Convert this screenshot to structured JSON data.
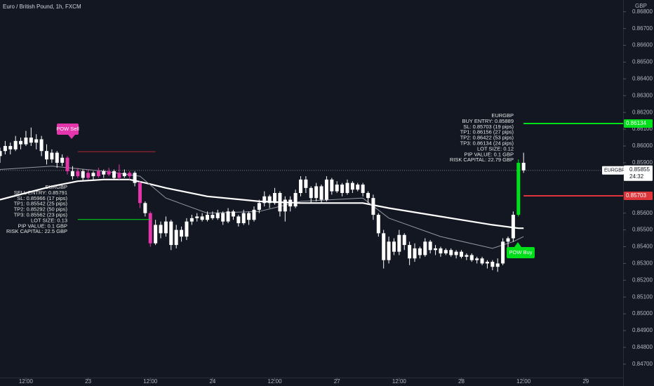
{
  "chart_data": {
    "type": "candlestick",
    "title": "Euro / British Pound, 1h, FXCM",
    "currency": "GBP",
    "xlim": [
      0,
      120.2
    ],
    "ylim": [
      0.8462,
      0.8687
    ],
    "xticks": [
      {
        "value": 5,
        "label": "12:00"
      },
      {
        "value": 17,
        "label": "23"
      },
      {
        "value": 29,
        "label": "12:00"
      },
      {
        "value": 41,
        "label": "24"
      },
      {
        "value": 53,
        "label": "12:00"
      },
      {
        "value": 65,
        "label": "27"
      },
      {
        "value": 77,
        "label": "12:00"
      },
      {
        "value": 89,
        "label": "28"
      },
      {
        "value": 101,
        "label": "12:00"
      },
      {
        "value": 113,
        "label": "29"
      }
    ],
    "yticks": [
      {
        "value": 0.868,
        "label": "0.86800"
      },
      {
        "value": 0.867,
        "label": "0.86700"
      },
      {
        "value": 0.866,
        "label": "0.86600"
      },
      {
        "value": 0.865,
        "label": "0.86500"
      },
      {
        "value": 0.864,
        "label": "0.86400"
      },
      {
        "value": 0.863,
        "label": "0.86300"
      },
      {
        "value": 0.862,
        "label": "0.86200"
      },
      {
        "value": 0.861,
        "label": "0.86100"
      },
      {
        "value": 0.86,
        "label": "0.86000"
      },
      {
        "value": 0.859,
        "label": "0.85900"
      },
      {
        "value": 0.856,
        "label": "0.85600"
      },
      {
        "value": 0.855,
        "label": "0.85500"
      },
      {
        "value": 0.854,
        "label": "0.85400"
      },
      {
        "value": 0.853,
        "label": "0.85300"
      },
      {
        "value": 0.852,
        "label": "0.85200"
      },
      {
        "value": 0.851,
        "label": "0.85100"
      },
      {
        "value": 0.85,
        "label": "0.85000"
      },
      {
        "value": 0.849,
        "label": "0.84900"
      },
      {
        "value": 0.848,
        "label": "0.84800"
      },
      {
        "value": 0.847,
        "label": "0.84700"
      }
    ],
    "candle_color": "#ffffff",
    "sell_color": "#e535ab",
    "buy_color": "#00e01a",
    "sell_candles": [
      13,
      15,
      17,
      19,
      21,
      23,
      25,
      27,
      29
    ],
    "buy_candles": [
      100
    ],
    "ohlc": [
      [
        0.8594,
        0.8599,
        0.859,
        0.8597
      ],
      [
        0.8597,
        0.8603,
        0.8595,
        0.86
      ],
      [
        0.86,
        0.8602,
        0.8595,
        0.8598
      ],
      [
        0.8598,
        0.8606,
        0.8597,
        0.8603
      ],
      [
        0.8603,
        0.8605,
        0.8598,
        0.8601
      ],
      [
        0.8601,
        0.8609,
        0.86,
        0.8605
      ],
      [
        0.8605,
        0.8611,
        0.86,
        0.8602
      ],
      [
        0.8602,
        0.8607,
        0.8598,
        0.8604
      ],
      [
        0.8604,
        0.8606,
        0.8594,
        0.8597
      ],
      [
        0.8597,
        0.8601,
        0.8589,
        0.8592
      ],
      [
        0.8592,
        0.8598,
        0.859,
        0.8596
      ],
      [
        0.8596,
        0.8597,
        0.8587,
        0.859
      ],
      [
        0.859,
        0.8595,
        0.8588,
        0.8593
      ],
      [
        0.8593,
        0.8594,
        0.8583,
        0.8585
      ],
      [
        0.8585,
        0.8588,
        0.858,
        0.8582
      ],
      [
        0.8582,
        0.8587,
        0.8581,
        0.8585
      ],
      [
        0.8585,
        0.8586,
        0.8579,
        0.8581
      ],
      [
        0.8581,
        0.8586,
        0.858,
        0.8584
      ],
      [
        0.8584,
        0.8585,
        0.858,
        0.8582
      ],
      [
        0.8582,
        0.8587,
        0.8581,
        0.8585
      ],
      [
        0.8585,
        0.8586,
        0.8581,
        0.8583
      ],
      [
        0.8583,
        0.8587,
        0.8582,
        0.8585
      ],
      [
        0.8585,
        0.8586,
        0.858,
        0.8581
      ],
      [
        0.8581,
        0.8589,
        0.858,
        0.8584
      ],
      [
        0.8584,
        0.8586,
        0.8581,
        0.8582
      ],
      [
        0.8582,
        0.8585,
        0.858,
        0.8584
      ],
      [
        0.8584,
        0.8585,
        0.8576,
        0.8578
      ],
      [
        0.8578,
        0.8579,
        0.8563,
        0.8566
      ],
      [
        0.8566,
        0.8567,
        0.8558,
        0.856
      ],
      [
        0.856,
        0.8561,
        0.854,
        0.8542
      ],
      [
        0.8542,
        0.8556,
        0.8541,
        0.8553
      ],
      [
        0.8553,
        0.8555,
        0.8545,
        0.8548
      ],
      [
        0.8548,
        0.8558,
        0.8546,
        0.8555
      ],
      [
        0.8555,
        0.8556,
        0.8538,
        0.8541
      ],
      [
        0.8541,
        0.8553,
        0.8539,
        0.855
      ],
      [
        0.855,
        0.8552,
        0.8543,
        0.8546
      ],
      [
        0.8546,
        0.8557,
        0.8544,
        0.8555
      ],
      [
        0.8555,
        0.8559,
        0.8553,
        0.8557
      ],
      [
        0.8557,
        0.856,
        0.8555,
        0.8558
      ],
      [
        0.8558,
        0.856,
        0.8555,
        0.8556
      ],
      [
        0.8556,
        0.8561,
        0.8555,
        0.8559
      ],
      [
        0.8559,
        0.8561,
        0.8556,
        0.8557
      ],
      [
        0.8557,
        0.8562,
        0.8556,
        0.856
      ],
      [
        0.856,
        0.8561,
        0.8553,
        0.8555
      ],
      [
        0.8555,
        0.8563,
        0.8554,
        0.8561
      ],
      [
        0.8561,
        0.8562,
        0.8556,
        0.8558
      ],
      [
        0.8558,
        0.8559,
        0.8552,
        0.8554
      ],
      [
        0.8554,
        0.8562,
        0.8553,
        0.856
      ],
      [
        0.856,
        0.8561,
        0.8553,
        0.8556
      ],
      [
        0.8556,
        0.8564,
        0.8555,
        0.8562
      ],
      [
        0.8562,
        0.8568,
        0.856,
        0.8566
      ],
      [
        0.8566,
        0.8573,
        0.8564,
        0.857
      ],
      [
        0.857,
        0.8571,
        0.8563,
        0.8566
      ],
      [
        0.8566,
        0.8575,
        0.8565,
        0.8572
      ],
      [
        0.8572,
        0.8573,
        0.8558,
        0.8561
      ],
      [
        0.8561,
        0.857,
        0.8555,
        0.8568
      ],
      [
        0.8568,
        0.857,
        0.8561,
        0.8564
      ],
      [
        0.8564,
        0.8574,
        0.8563,
        0.8572
      ],
      [
        0.8572,
        0.8582,
        0.857,
        0.858
      ],
      [
        0.858,
        0.8582,
        0.8572,
        0.8575
      ],
      [
        0.8575,
        0.8576,
        0.8566,
        0.8569
      ],
      [
        0.8569,
        0.8578,
        0.8567,
        0.8576
      ],
      [
        0.8576,
        0.8577,
        0.8566,
        0.8568
      ],
      [
        0.8568,
        0.8582,
        0.8567,
        0.858
      ],
      [
        0.858,
        0.8581,
        0.8571,
        0.8573
      ],
      [
        0.8573,
        0.8579,
        0.8572,
        0.8577
      ],
      [
        0.8577,
        0.8578,
        0.857,
        0.8572
      ],
      [
        0.8572,
        0.858,
        0.8571,
        0.8578
      ],
      [
        0.8578,
        0.8579,
        0.8572,
        0.8574
      ],
      [
        0.8574,
        0.8578,
        0.8573,
        0.8577
      ],
      [
        0.8577,
        0.8578,
        0.857,
        0.8572
      ],
      [
        0.8572,
        0.8573,
        0.8566,
        0.8569
      ],
      [
        0.8569,
        0.8571,
        0.8556,
        0.8559
      ],
      [
        0.8559,
        0.856,
        0.8546,
        0.8548
      ],
      [
        0.8548,
        0.855,
        0.8527,
        0.8532
      ],
      [
        0.8532,
        0.8546,
        0.853,
        0.8543
      ],
      [
        0.8543,
        0.8545,
        0.8535,
        0.8537
      ],
      [
        0.8537,
        0.855,
        0.8535,
        0.8547
      ],
      [
        0.8547,
        0.8548,
        0.8538,
        0.8541
      ],
      [
        0.8541,
        0.8543,
        0.8529,
        0.8533
      ],
      [
        0.8533,
        0.8542,
        0.8531,
        0.8539
      ],
      [
        0.8539,
        0.854,
        0.8533,
        0.8535
      ],
      [
        0.8535,
        0.8545,
        0.8534,
        0.8543
      ],
      [
        0.8543,
        0.8544,
        0.8536,
        0.8538
      ],
      [
        0.8538,
        0.8541,
        0.8535,
        0.8539
      ],
      [
        0.8539,
        0.854,
        0.8534,
        0.8536
      ],
      [
        0.8536,
        0.8539,
        0.8535,
        0.8538
      ],
      [
        0.8538,
        0.8539,
        0.8534,
        0.8535
      ],
      [
        0.8535,
        0.8538,
        0.8533,
        0.8537
      ],
      [
        0.8537,
        0.8538,
        0.8533,
        0.8534
      ],
      [
        0.8534,
        0.8536,
        0.8532,
        0.8535
      ],
      [
        0.8535,
        0.8536,
        0.8531,
        0.8532
      ],
      [
        0.8532,
        0.8534,
        0.853,
        0.8533
      ],
      [
        0.8533,
        0.8534,
        0.8529,
        0.853
      ],
      [
        0.853,
        0.8532,
        0.8527,
        0.8531
      ],
      [
        0.8531,
        0.8532,
        0.8526,
        0.8528
      ],
      [
        0.8528,
        0.8533,
        0.8525,
        0.853
      ],
      [
        0.853,
        0.8545,
        0.8529,
        0.8543
      ],
      [
        0.8543,
        0.8546,
        0.8538,
        0.8545
      ],
      [
        0.8545,
        0.8561,
        0.8543,
        0.8559
      ],
      [
        0.8559,
        0.8592,
        0.8558,
        0.859
      ],
      [
        0.859,
        0.8596,
        0.8584,
        0.85855
      ]
    ],
    "lines": [
      {
        "color": "#ffffff",
        "width": 2.2,
        "x": [
          0,
          5,
          10,
          15,
          20,
          25,
          28,
          32,
          40,
          50,
          58,
          70,
          75,
          85,
          95,
          100,
          101
        ],
        "values": [
          0.8568,
          0.8572,
          0.8576,
          0.8579,
          0.858,
          0.858,
          0.8578,
          0.8575,
          0.857,
          0.8567,
          0.8566,
          0.8566,
          0.8563,
          0.8558,
          0.8553,
          0.8551,
          0.8551
        ]
      },
      {
        "color": "#9598a1",
        "width": 1,
        "x": [
          0,
          10,
          20,
          27,
          32,
          40,
          50,
          58,
          70,
          75,
          85,
          95,
          99,
          101
        ],
        "values": [
          0.8586,
          0.8588,
          0.8585,
          0.8582,
          0.8569,
          0.856,
          0.8561,
          0.8567,
          0.8569,
          0.8557,
          0.8546,
          0.8539,
          0.8543,
          0.8546
        ]
      }
    ],
    "last_price": {
      "symbol": "EURGBP",
      "value": 0.85855,
      "label": "0.85855",
      "countdown": "24:32"
    },
    "levels": [
      {
        "value": 0.85966,
        "color": "#b22833",
        "from": 15,
        "to": 30
      },
      {
        "value": 0.85562,
        "color": "#00e01a",
        "from": 15,
        "to": 29
      },
      {
        "value": 0.86134,
        "label": "0.86134",
        "color": "#00e01a",
        "from": 101
      },
      {
        "value": 0.85703,
        "label": "0.85703",
        "color": "#e0343b",
        "from": 101
      }
    ],
    "signals": [
      {
        "label": "POW Sell",
        "color": "#e535ab",
        "info": [
          "EURGBP",
          "SELL ENTRY: 0.85791",
          "SL: 0.85966 (17 pips)",
          "TP1: 0.85542 (25 pips)",
          "TP2: 0.85292 (50 pips)",
          "TP3: 0.85562 (23 pips)",
          "LOT SIZE: 0.13",
          "PIP VALUE: 0.1 GBP",
          "RISK CAPITAL: 22.5 GBP"
        ]
      },
      {
        "label": "POW Buy",
        "color": "#00e01a",
        "info": [
          "EURGBP",
          "BUY ENTRY: 0.85889",
          "SL: 0.85703 (19 pips)",
          "TP1: 0.86156 (27 pips)",
          "TP2: 0.86422 (53 pips)",
          "TP3: 0.86134 (24 pips)",
          "LOT SIZE: 0.12",
          "PIP VALUE: 0.1 GBP",
          "RISK CAPITAL: 22.79 GBP"
        ]
      }
    ]
  }
}
